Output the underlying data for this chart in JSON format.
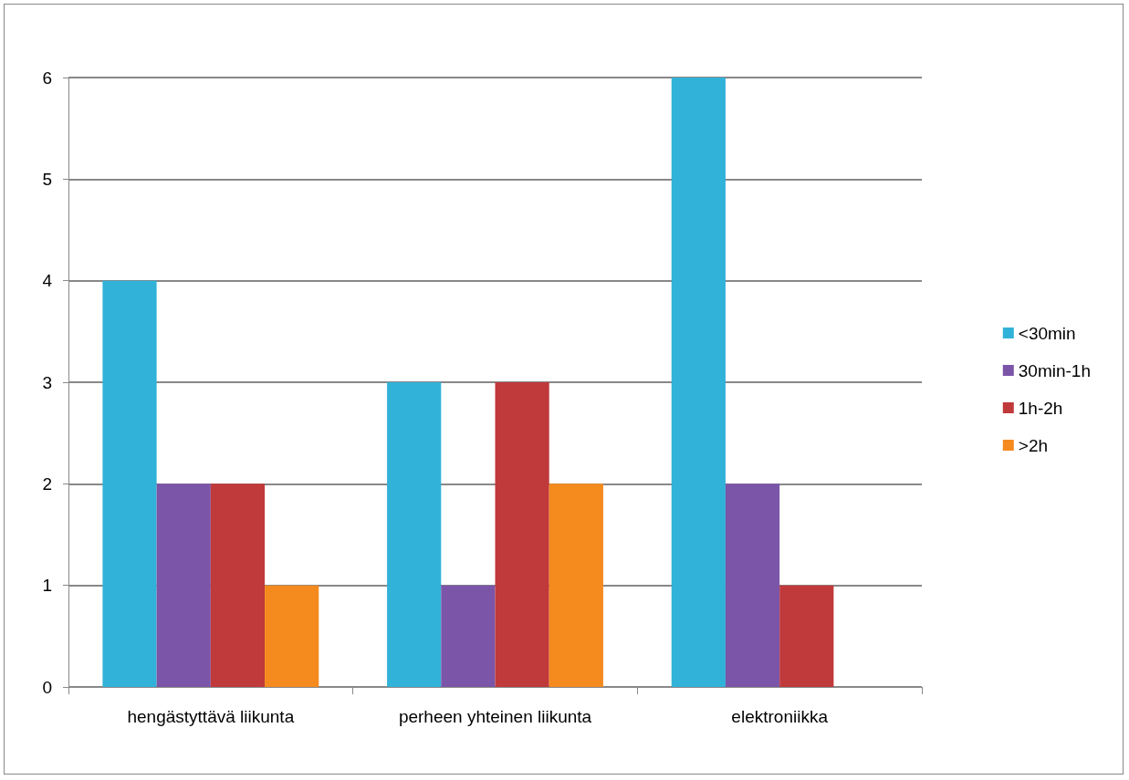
{
  "chart_data": {
    "type": "bar",
    "categories": [
      "hengästyttävä liikunta",
      "perheen yhteinen liikunta",
      "elektroniikka"
    ],
    "series": [
      {
        "name": "<30min",
        "color": "#31b2d8",
        "values": [
          4,
          3,
          6
        ]
      },
      {
        "name": "30min-1h",
        "color": "#7b55a8",
        "values": [
          2,
          1,
          2
        ]
      },
      {
        "name": "1h-2h",
        "color": "#c0393b",
        "values": [
          2,
          3,
          1
        ]
      },
      {
        "name": ">2h",
        "color": "#f58a1f",
        "values": [
          1,
          2,
          0
        ]
      }
    ],
    "ylim": [
      0,
      6
    ],
    "yticks": [
      0,
      1,
      2,
      3,
      4,
      5,
      6
    ],
    "grid": "y",
    "legend": "right"
  }
}
